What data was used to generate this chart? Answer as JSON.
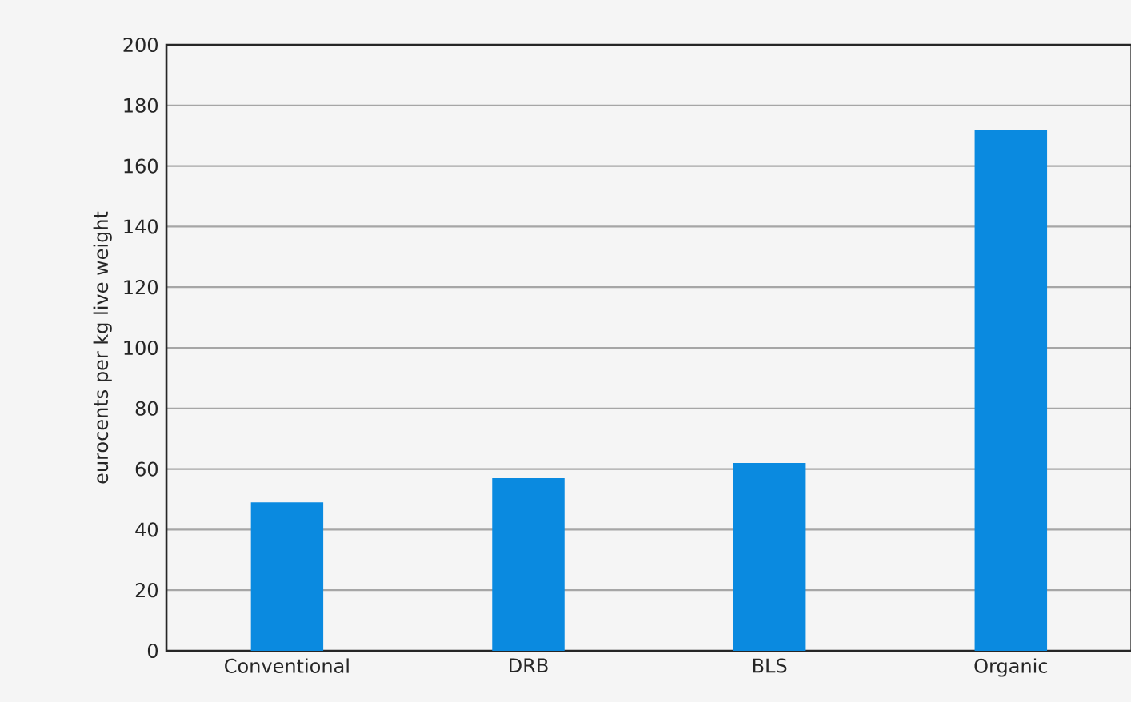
{
  "chart_data": {
    "type": "bar",
    "ylabel": "eurocents per kg live weight",
    "categories": [
      "Conventional",
      "DRB",
      "BLS",
      "Organic"
    ],
    "values": [
      49,
      57,
      62,
      172
    ],
    "color": "#0a8ae0",
    "ylim": [
      0,
      200
    ],
    "yticks": [
      0,
      20,
      40,
      60,
      80,
      100,
      120,
      140,
      160,
      180,
      200
    ],
    "grid": "y"
  }
}
